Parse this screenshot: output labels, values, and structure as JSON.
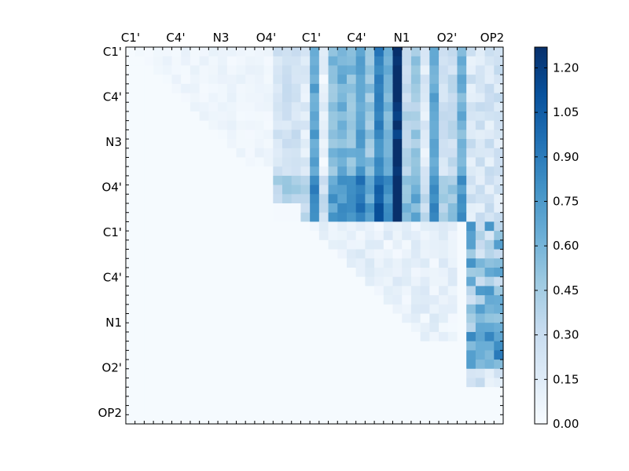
{
  "chart_data": {
    "type": "heatmap",
    "title": "",
    "xlabel": "",
    "ylabel": "",
    "x_tick_labels": [
      "C1'",
      "C4'",
      "N3",
      "O4'",
      "C1'",
      "C4'",
      "N1",
      "O2'",
      "OP2"
    ],
    "y_tick_labels": [
      "C1'",
      "C4'",
      "N3",
      "O4'",
      "C1'",
      "C4'",
      "N1",
      "O2'",
      "OP2"
    ],
    "grid": false,
    "colormap": "Blues",
    "colorbar": {
      "range": [
        0.0,
        1.27
      ],
      "tick_labels": [
        "0.00",
        "0.15",
        "0.30",
        "0.45",
        "0.60",
        "0.75",
        "0.90",
        "1.05",
        "1.20"
      ],
      "placement": "right"
    },
    "rows": 41,
    "cols": 41,
    "background_value": 0.01,
    "block_regions": [
      {
        "label": "upper-left triangle",
        "row_range": [
          0,
          13
        ],
        "col_range": [
          1,
          15
        ],
        "values_range": [
          0.0,
          0.1
        ]
      },
      {
        "label": "upper-middle block",
        "row_range": [
          0,
          19
        ],
        "col_range": [
          16,
          37
        ],
        "values_range": [
          0.05,
          1.27
        ]
      },
      {
        "label": "right column strip",
        "row_range": [
          0,
          37
        ],
        "col_range": [
          37,
          41
        ],
        "values_range": [
          0.05,
          0.9
        ]
      },
      {
        "label": "lower-middle triangle",
        "row_range": [
          19,
          32
        ],
        "col_range": [
          20,
          36
        ],
        "values_range": [
          0.0,
          0.2
        ]
      }
    ],
    "column_profile_upper_block": [
      0.2,
      0.22,
      0.25,
      0.15,
      0.7,
      0.1,
      0.55,
      0.6,
      0.55,
      0.72,
      0.5,
      0.85,
      0.6,
      1.25,
      0.35,
      0.45,
      0.15,
      0.65,
      0.25,
      0.3,
      0.6,
      0.65,
      0.68,
      0.7,
      0.62,
      0.9,
      0.3,
      0.25
    ]
  }
}
